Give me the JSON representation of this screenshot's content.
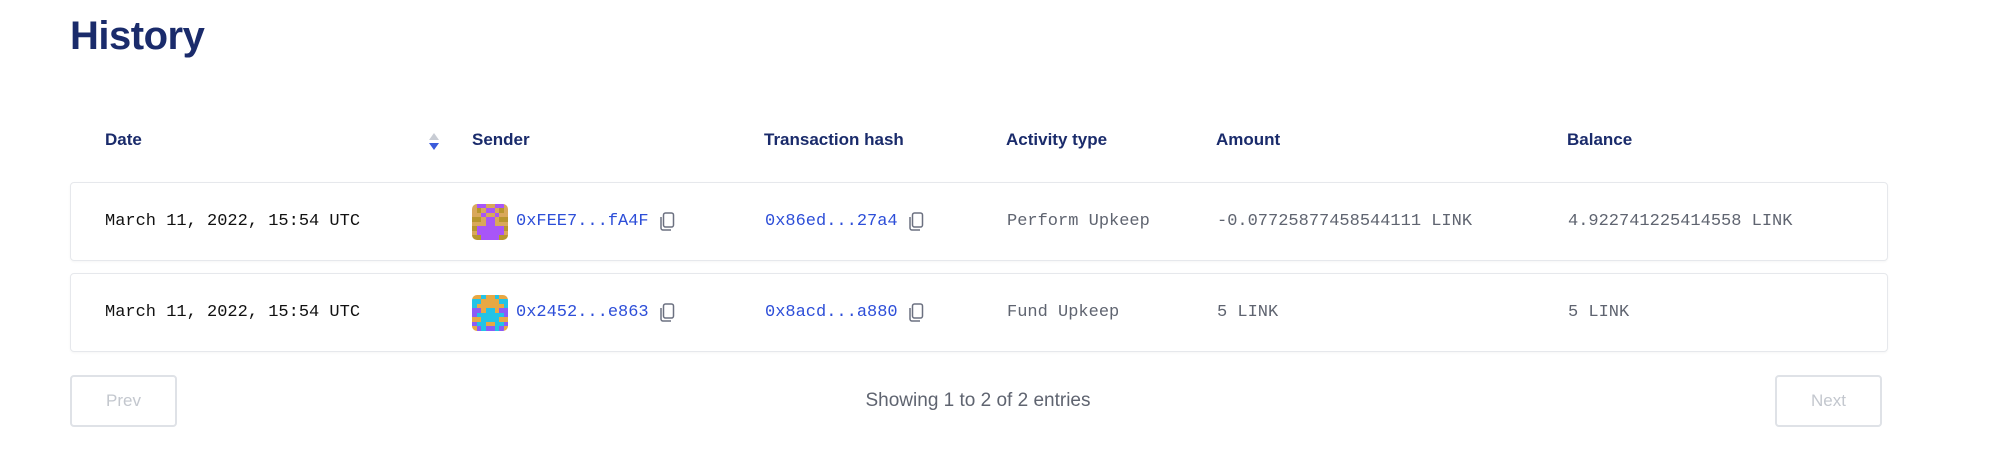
{
  "title": "History",
  "columns": [
    "Date",
    "Sender",
    "Transaction hash",
    "Activity type",
    "Amount",
    "Balance"
  ],
  "sort": {
    "column": "Date",
    "direction": "descending",
    "active_color": "#3b5bdb",
    "inactive_color": "#c8ccd4"
  },
  "rows": [
    {
      "date": "March 11, 2022, 15:54 UTC",
      "sender": "0xFEE7...fA4F",
      "tx_hash": "0x86ed...27a4",
      "activity": "Perform Upkeep",
      "amount": "-0.07725877458544111 LINK",
      "balance": "4.922741225414558 LINK",
      "avatar_colors": [
        "#d9a85a",
        "#a855f7",
        "#b8962e"
      ]
    },
    {
      "date": "March 11, 2022, 15:54 UTC",
      "sender": "0x2452...e863",
      "tx_hash": "0x8acd...a880",
      "activity": "Fund Upkeep",
      "amount": "5 LINK",
      "balance": "5 LINK",
      "avatar_colors": [
        "#e8a843",
        "#22c3e6",
        "#8b5cf6"
      ]
    }
  ],
  "pagination": {
    "prev": "Prev",
    "next": "Next",
    "summary": "Showing 1 to 2 of 2 entries"
  },
  "colors": {
    "heading": "#1a2b6b",
    "link": "#2d4ed8"
  }
}
